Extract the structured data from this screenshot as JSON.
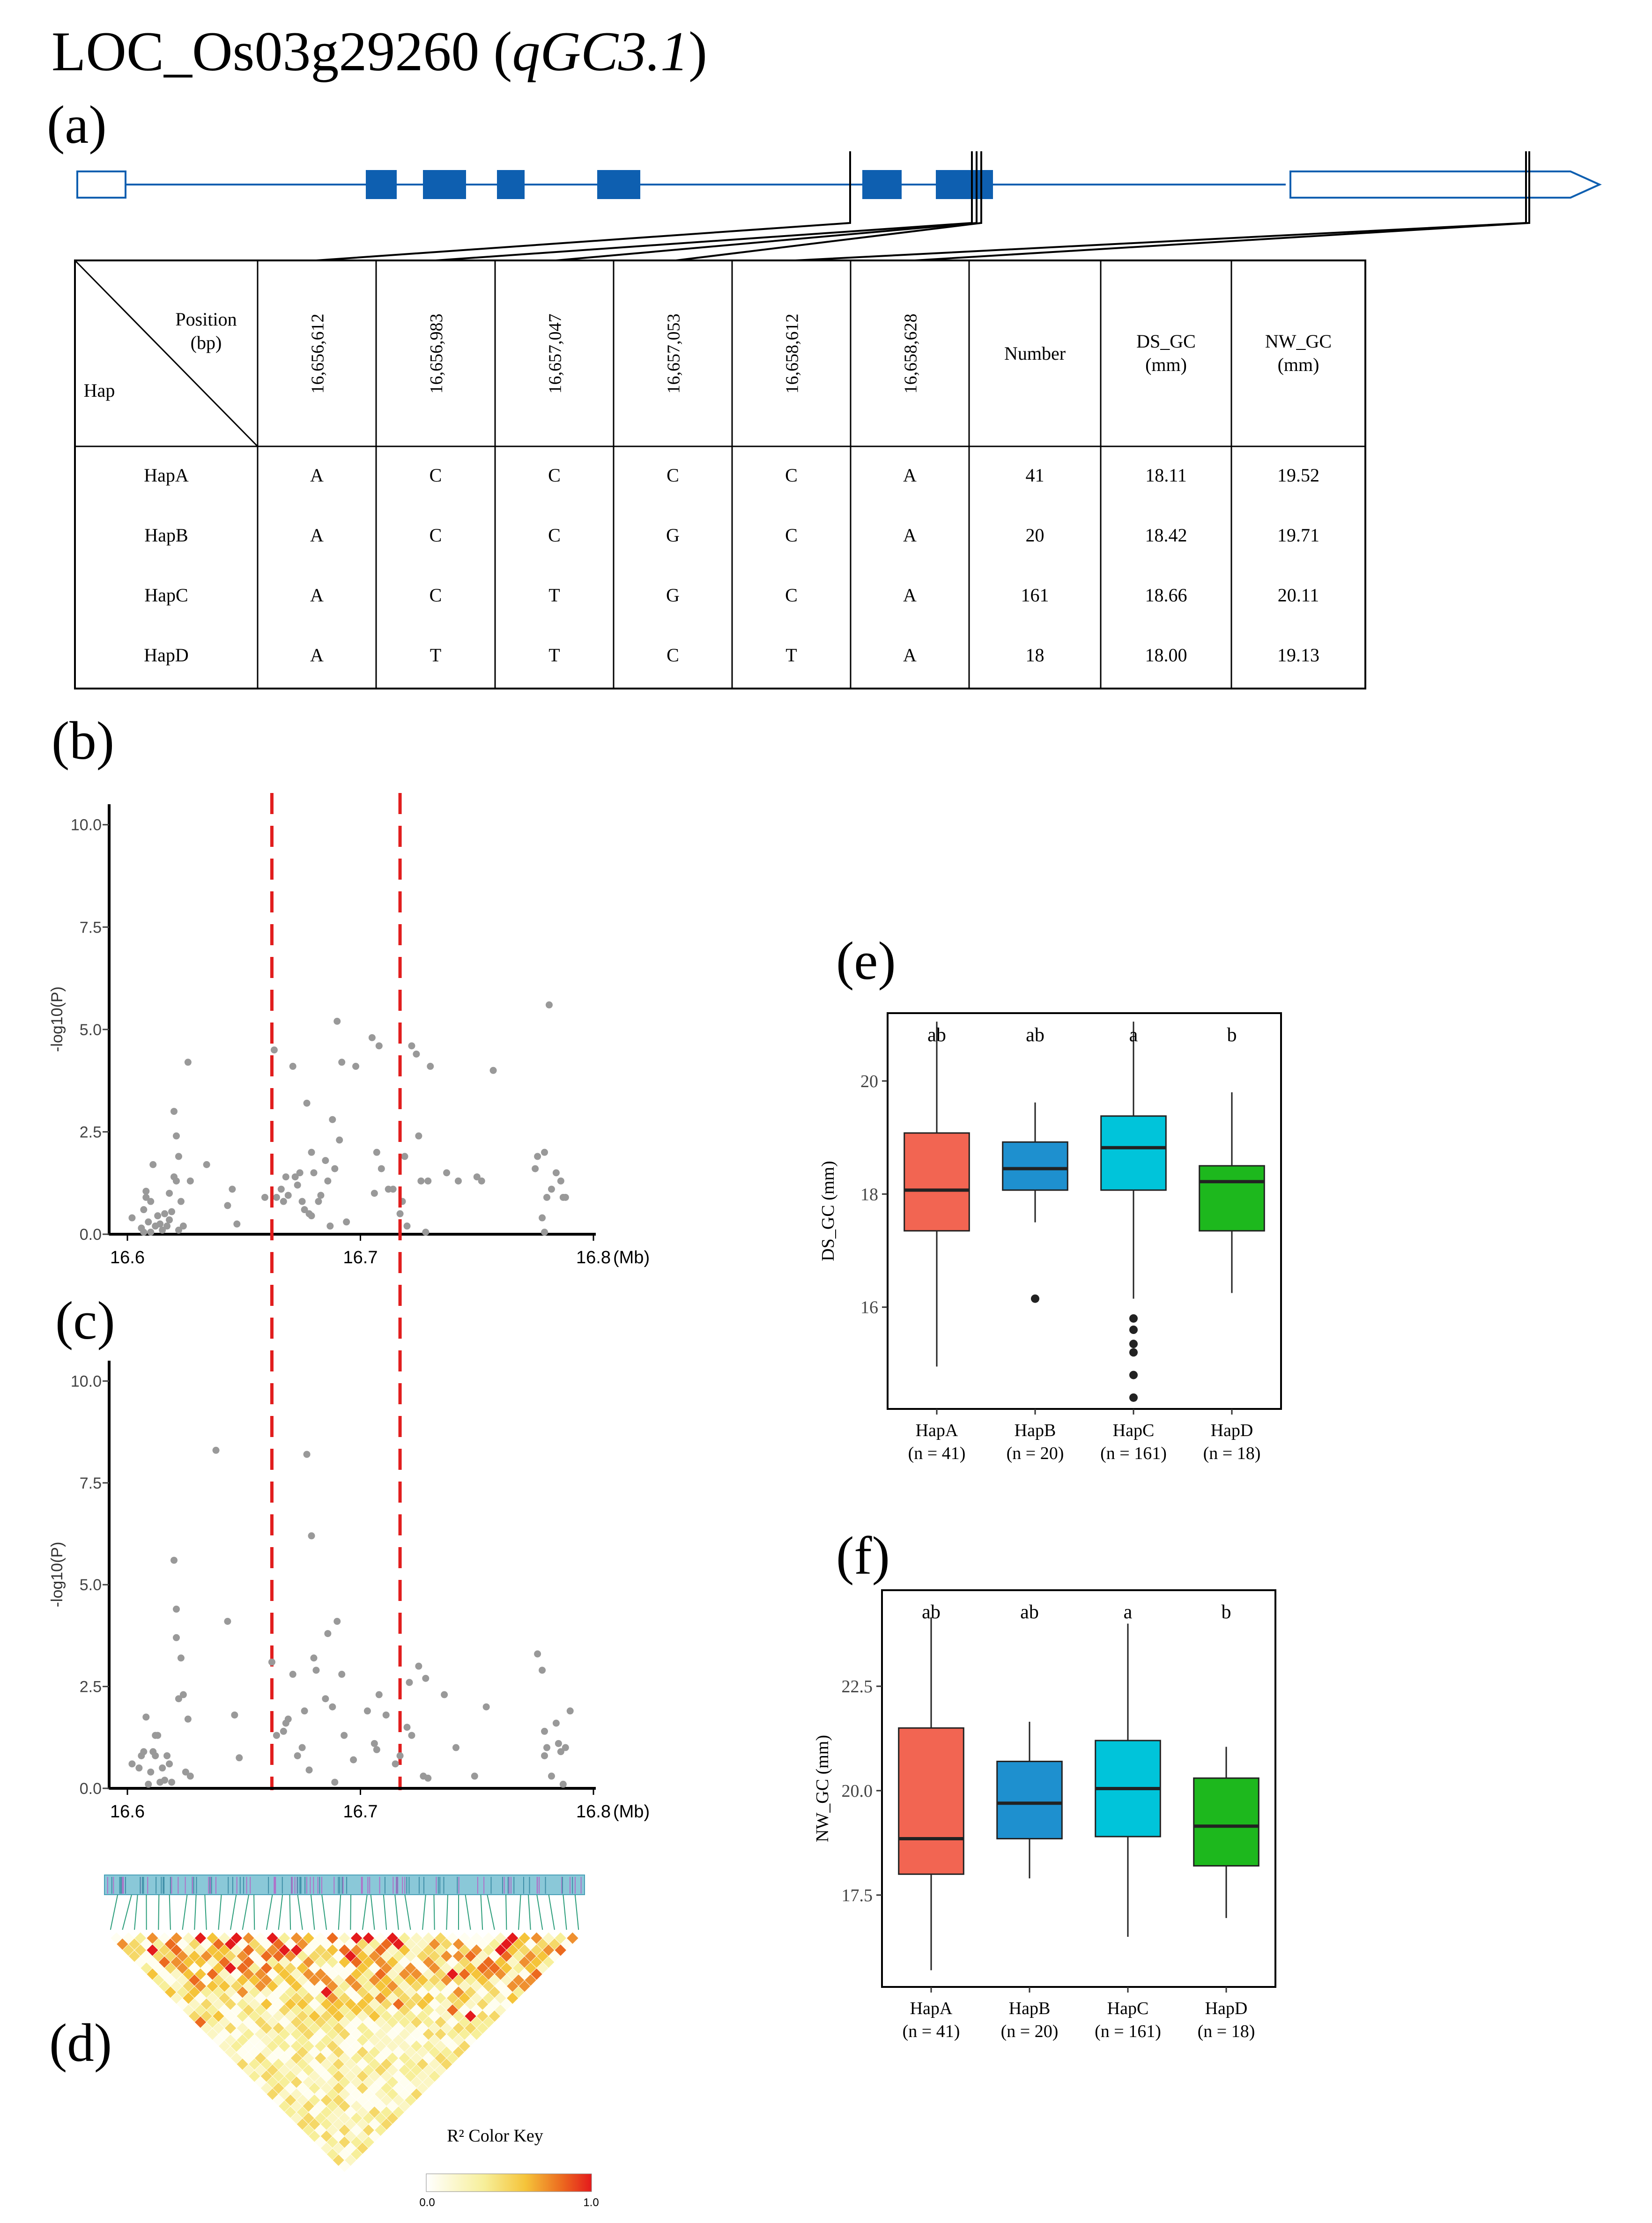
{
  "figure_title": {
    "gene": "LOC_Os03g29260",
    "qtl": "qGC3.1",
    "open": " (",
    "close": ")"
  },
  "panel_labels": {
    "a": "(a)",
    "b": "(b)",
    "c": "(c)",
    "d": "(d)",
    "e": "(e)",
    "f": "(f)"
  },
  "gene_model": {
    "color": "#0e5fb0",
    "exons": 6,
    "snp_count": 6
  },
  "hap_table": {
    "corner_top_1": "Position",
    "corner_top_2": "(bp)",
    "corner_bottom": "Hap",
    "positions": [
      "16,656,612",
      "16,656,983",
      "16,657,047",
      "16,657,053",
      "16,658,612",
      "16,658,628"
    ],
    "extra_headers": [
      {
        "line1": "Number",
        "line2": ""
      },
      {
        "line1": "DS_GC",
        "line2": "(mm)"
      },
      {
        "line1": "NW_GC",
        "line2": "(mm)"
      }
    ],
    "rows": [
      {
        "hap": "HapA",
        "alleles": [
          "A",
          "C",
          "C",
          "C",
          "C",
          "A"
        ],
        "number": "41",
        "ds_gc": "18.11",
        "nw_gc": "19.52"
      },
      {
        "hap": "HapB",
        "alleles": [
          "A",
          "C",
          "C",
          "G",
          "C",
          "A"
        ],
        "number": "20",
        "ds_gc": "18.42",
        "nw_gc": "19.71"
      },
      {
        "hap": "HapC",
        "alleles": [
          "A",
          "C",
          "T",
          "G",
          "C",
          "A"
        ],
        "number": "161",
        "ds_gc": "18.66",
        "nw_gc": "20.11"
      },
      {
        "hap": "HapD",
        "alleles": [
          "A",
          "T",
          "T",
          "C",
          "T",
          "A"
        ],
        "number": "18",
        "ds_gc": "18.00",
        "nw_gc": "19.13"
      }
    ]
  },
  "ld_heatmap": {
    "key_title": "R² Color Key",
    "key_min": "0.0",
    "key_max": "1.0",
    "colors": [
      "#ffffff",
      "#f7ef9a",
      "#f5c43a",
      "#ec6a1f",
      "#e41a1c"
    ]
  },
  "chart_data": [
    {
      "id": "b",
      "type": "scatter",
      "title": "",
      "xlabel": "(Mb)",
      "ylabel": "-log10(P)",
      "xlim": [
        16.6,
        16.8
      ],
      "ylim": [
        0,
        10.5
      ],
      "xticks": [
        "16.6",
        "16.7",
        "16.8"
      ],
      "yticks": [
        "0.0",
        "2.5",
        "5.0",
        "7.5",
        "10.0"
      ],
      "vlines": [
        16.662,
        16.717
      ],
      "point_color": "#999999",
      "points": [
        [
          16.602,
          0.4
        ],
        [
          16.606,
          0.15
        ],
        [
          16.607,
          0.05
        ],
        [
          16.607,
          0.6
        ],
        [
          16.608,
          1.05
        ],
        [
          16.608,
          0.9
        ],
        [
          16.609,
          0.3
        ],
        [
          16.61,
          0.05
        ],
        [
          16.61,
          0.8
        ],
        [
          16.611,
          1.7
        ],
        [
          16.612,
          0.2
        ],
        [
          16.613,
          0.45
        ],
        [
          16.614,
          0.25
        ],
        [
          16.615,
          0.1
        ],
        [
          16.616,
          0.5
        ],
        [
          16.617,
          0.2
        ],
        [
          16.618,
          1.0
        ],
        [
          16.618,
          0.35
        ],
        [
          16.619,
          0.55
        ],
        [
          16.62,
          3.0
        ],
        [
          16.62,
          1.4
        ],
        [
          16.621,
          2.4
        ],
        [
          16.621,
          1.3
        ],
        [
          16.622,
          1.9
        ],
        [
          16.622,
          0.1
        ],
        [
          16.623,
          0.8
        ],
        [
          16.624,
          0.2
        ],
        [
          16.626,
          4.2
        ],
        [
          16.627,
          1.3
        ],
        [
          16.634,
          1.7
        ],
        [
          16.643,
          0.7
        ],
        [
          16.645,
          1.1
        ],
        [
          16.647,
          0.25
        ],
        [
          16.659,
          0.9
        ],
        [
          16.663,
          4.5
        ],
        [
          16.664,
          0.9
        ],
        [
          16.666,
          1.1
        ],
        [
          16.667,
          0.8
        ],
        [
          16.668,
          1.4
        ],
        [
          16.669,
          0.95
        ],
        [
          16.671,
          4.1
        ],
        [
          16.672,
          1.4
        ],
        [
          16.673,
          1.2
        ],
        [
          16.674,
          1.5
        ],
        [
          16.675,
          0.8
        ],
        [
          16.676,
          0.6
        ],
        [
          16.677,
          3.2
        ],
        [
          16.678,
          0.5
        ],
        [
          16.679,
          0.45
        ],
        [
          16.679,
          2.0
        ],
        [
          16.68,
          1.5
        ],
        [
          16.682,
          0.8
        ],
        [
          16.683,
          0.95
        ],
        [
          16.685,
          1.8
        ],
        [
          16.686,
          1.3
        ],
        [
          16.687,
          0.2
        ],
        [
          16.688,
          2.8
        ],
        [
          16.689,
          1.6
        ],
        [
          16.69,
          5.2
        ],
        [
          16.691,
          2.3
        ],
        [
          16.692,
          4.2
        ],
        [
          16.694,
          0.3
        ],
        [
          16.698,
          4.1
        ],
        [
          16.705,
          4.8
        ],
        [
          16.706,
          1.0
        ],
        [
          16.707,
          2.0
        ],
        [
          16.708,
          4.6
        ],
        [
          16.709,
          1.6
        ],
        [
          16.712,
          1.1
        ],
        [
          16.714,
          1.1
        ],
        [
          16.717,
          0.5
        ],
        [
          16.718,
          0.8
        ],
        [
          16.719,
          1.9
        ],
        [
          16.72,
          0.2
        ],
        [
          16.722,
          4.6
        ],
        [
          16.724,
          4.4
        ],
        [
          16.725,
          2.4
        ],
        [
          16.726,
          1.3
        ],
        [
          16.728,
          0.05
        ],
        [
          16.729,
          1.3
        ],
        [
          16.73,
          4.1
        ],
        [
          16.737,
          1.5
        ],
        [
          16.742,
          1.3
        ],
        [
          16.75,
          1.4
        ],
        [
          16.752,
          1.3
        ],
        [
          16.757,
          4.0
        ],
        [
          16.775,
          1.6
        ],
        [
          16.776,
          1.9
        ],
        [
          16.778,
          0.4
        ],
        [
          16.779,
          0.05
        ],
        [
          16.779,
          2.0
        ],
        [
          16.78,
          0.9
        ],
        [
          16.781,
          5.6
        ],
        [
          16.782,
          1.1
        ],
        [
          16.784,
          1.5
        ],
        [
          16.786,
          1.3
        ],
        [
          16.787,
          0.9
        ],
        [
          16.788,
          0.9
        ]
      ]
    },
    {
      "id": "c",
      "type": "scatter",
      "title": "",
      "xlabel": "(Mb)",
      "ylabel": "-log10(P)",
      "xlim": [
        16.6,
        16.8
      ],
      "ylim": [
        0,
        10.5
      ],
      "xticks": [
        "16.6",
        "16.7",
        "16.8"
      ],
      "yticks": [
        "0.0",
        "2.5",
        "5.0",
        "7.5",
        "10.0"
      ],
      "vlines": [
        16.662,
        16.717
      ],
      "point_color": "#999999",
      "points": [
        [
          16.602,
          0.6
        ],
        [
          16.605,
          0.5
        ],
        [
          16.606,
          0.8
        ],
        [
          16.607,
          0.9
        ],
        [
          16.608,
          1.75
        ],
        [
          16.609,
          0.1
        ],
        [
          16.61,
          0.4
        ],
        [
          16.611,
          0.9
        ],
        [
          16.612,
          1.3
        ],
        [
          16.612,
          0.8
        ],
        [
          16.613,
          1.3
        ],
        [
          16.614,
          0.15
        ],
        [
          16.615,
          0.5
        ],
        [
          16.616,
          0.2
        ],
        [
          16.617,
          0.8
        ],
        [
          16.618,
          0.6
        ],
        [
          16.619,
          0.15
        ],
        [
          16.62,
          5.6
        ],
        [
          16.621,
          4.4
        ],
        [
          16.621,
          3.7
        ],
        [
          16.622,
          2.2
        ],
        [
          16.623,
          3.2
        ],
        [
          16.624,
          2.3
        ],
        [
          16.625,
          0.4
        ],
        [
          16.626,
          1.7
        ],
        [
          16.627,
          0.3
        ],
        [
          16.638,
          8.3
        ],
        [
          16.643,
          4.1
        ],
        [
          16.646,
          1.8
        ],
        [
          16.648,
          0.75
        ],
        [
          16.662,
          3.1
        ],
        [
          16.664,
          1.3
        ],
        [
          16.667,
          1.4
        ],
        [
          16.668,
          1.6
        ],
        [
          16.669,
          1.7
        ],
        [
          16.671,
          2.8
        ],
        [
          16.673,
          0.8
        ],
        [
          16.675,
          1.0
        ],
        [
          16.676,
          1.9
        ],
        [
          16.677,
          8.2
        ],
        [
          16.678,
          0.45
        ],
        [
          16.679,
          6.2
        ],
        [
          16.68,
          3.2
        ],
        [
          16.681,
          2.9
        ],
        [
          16.685,
          2.2
        ],
        [
          16.686,
          3.8
        ],
        [
          16.688,
          2.0
        ],
        [
          16.689,
          0.15
        ],
        [
          16.69,
          4.1
        ],
        [
          16.692,
          2.8
        ],
        [
          16.693,
          1.3
        ],
        [
          16.697,
          0.7
        ],
        [
          16.703,
          1.9
        ],
        [
          16.706,
          1.1
        ],
        [
          16.707,
          0.95
        ],
        [
          16.708,
          2.3
        ],
        [
          16.711,
          1.8
        ],
        [
          16.715,
          0.6
        ],
        [
          16.717,
          0.8
        ],
        [
          16.72,
          1.5
        ],
        [
          16.721,
          2.6
        ],
        [
          16.722,
          1.3
        ],
        [
          16.725,
          3.0
        ],
        [
          16.727,
          0.3
        ],
        [
          16.728,
          2.7
        ],
        [
          16.729,
          0.25
        ],
        [
          16.736,
          2.3
        ],
        [
          16.741,
          1.0
        ],
        [
          16.749,
          0.3
        ],
        [
          16.754,
          2.0
        ],
        [
          16.776,
          3.3
        ],
        [
          16.778,
          2.9
        ],
        [
          16.779,
          0.8
        ],
        [
          16.779,
          1.4
        ],
        [
          16.78,
          1.0
        ],
        [
          16.782,
          0.3
        ],
        [
          16.784,
          1.6
        ],
        [
          16.785,
          1.1
        ],
        [
          16.786,
          0.9
        ],
        [
          16.787,
          0.1
        ],
        [
          16.788,
          1.0
        ],
        [
          16.79,
          1.9
        ]
      ]
    },
    {
      "id": "e",
      "type": "box",
      "ylabel": "DS_GC (mm)",
      "ylim": [
        14.2,
        21.2
      ],
      "yticks": [
        16,
        18,
        20
      ],
      "categories": [
        "HapA",
        "HapB",
        "HapC",
        "HapD"
      ],
      "n_labels": [
        "(n = 41)",
        "(n = 20)",
        "(n = 161)",
        "(n = 18)"
      ],
      "letters": [
        "ab",
        "ab",
        "a",
        "b"
      ],
      "colors": [
        "#f26552",
        "#1e90cf",
        "#00c4da",
        "#1db81d"
      ],
      "boxes": [
        {
          "q1": 17.35,
          "median": 18.07,
          "q3": 19.08,
          "whisker_low": 14.95,
          "whisker_high": 21.05,
          "outliers": []
        },
        {
          "q1": 18.07,
          "median": 18.45,
          "q3": 18.92,
          "whisker_low": 17.5,
          "whisker_high": 19.62,
          "outliers": [
            16.15
          ]
        },
        {
          "q1": 18.07,
          "median": 18.82,
          "q3": 19.38,
          "whisker_low": 16.15,
          "whisker_high": 21.05,
          "outliers": [
            15.8,
            15.6,
            15.35,
            15.2,
            14.8,
            14.4
          ]
        },
        {
          "q1": 17.35,
          "median": 18.22,
          "q3": 18.5,
          "whisker_low": 16.25,
          "whisker_high": 19.8,
          "outliers": []
        }
      ]
    },
    {
      "id": "f",
      "type": "box",
      "ylabel": "NW_GC (mm)",
      "ylim": [
        15.3,
        24.8
      ],
      "yticks": [
        17.5,
        20.0,
        22.5
      ],
      "ytick_labels": [
        "17.5",
        "20.0",
        "22.5"
      ],
      "categories": [
        "HapA",
        "HapB",
        "HapC",
        "HapD"
      ],
      "n_labels": [
        "(n = 41)",
        "(n = 20)",
        "(n = 161)",
        "(n = 18)"
      ],
      "letters": [
        "ab",
        "ab",
        "a",
        "b"
      ],
      "colors": [
        "#f26552",
        "#1e90cf",
        "#00c4da",
        "#1db81d"
      ],
      "boxes": [
        {
          "q1": 18.0,
          "median": 18.85,
          "q3": 21.5,
          "whisker_low": 15.7,
          "whisker_high": 24.15,
          "outliers": []
        },
        {
          "q1": 18.85,
          "median": 19.7,
          "q3": 20.7,
          "whisker_low": 17.9,
          "whisker_high": 21.65,
          "outliers": []
        },
        {
          "q1": 18.9,
          "median": 20.05,
          "q3": 21.2,
          "whisker_low": 16.5,
          "whisker_high": 24.0,
          "outliers": []
        },
        {
          "q1": 18.2,
          "median": 19.15,
          "q3": 20.3,
          "whisker_low": 16.95,
          "whisker_high": 21.05,
          "outliers": []
        }
      ]
    }
  ]
}
